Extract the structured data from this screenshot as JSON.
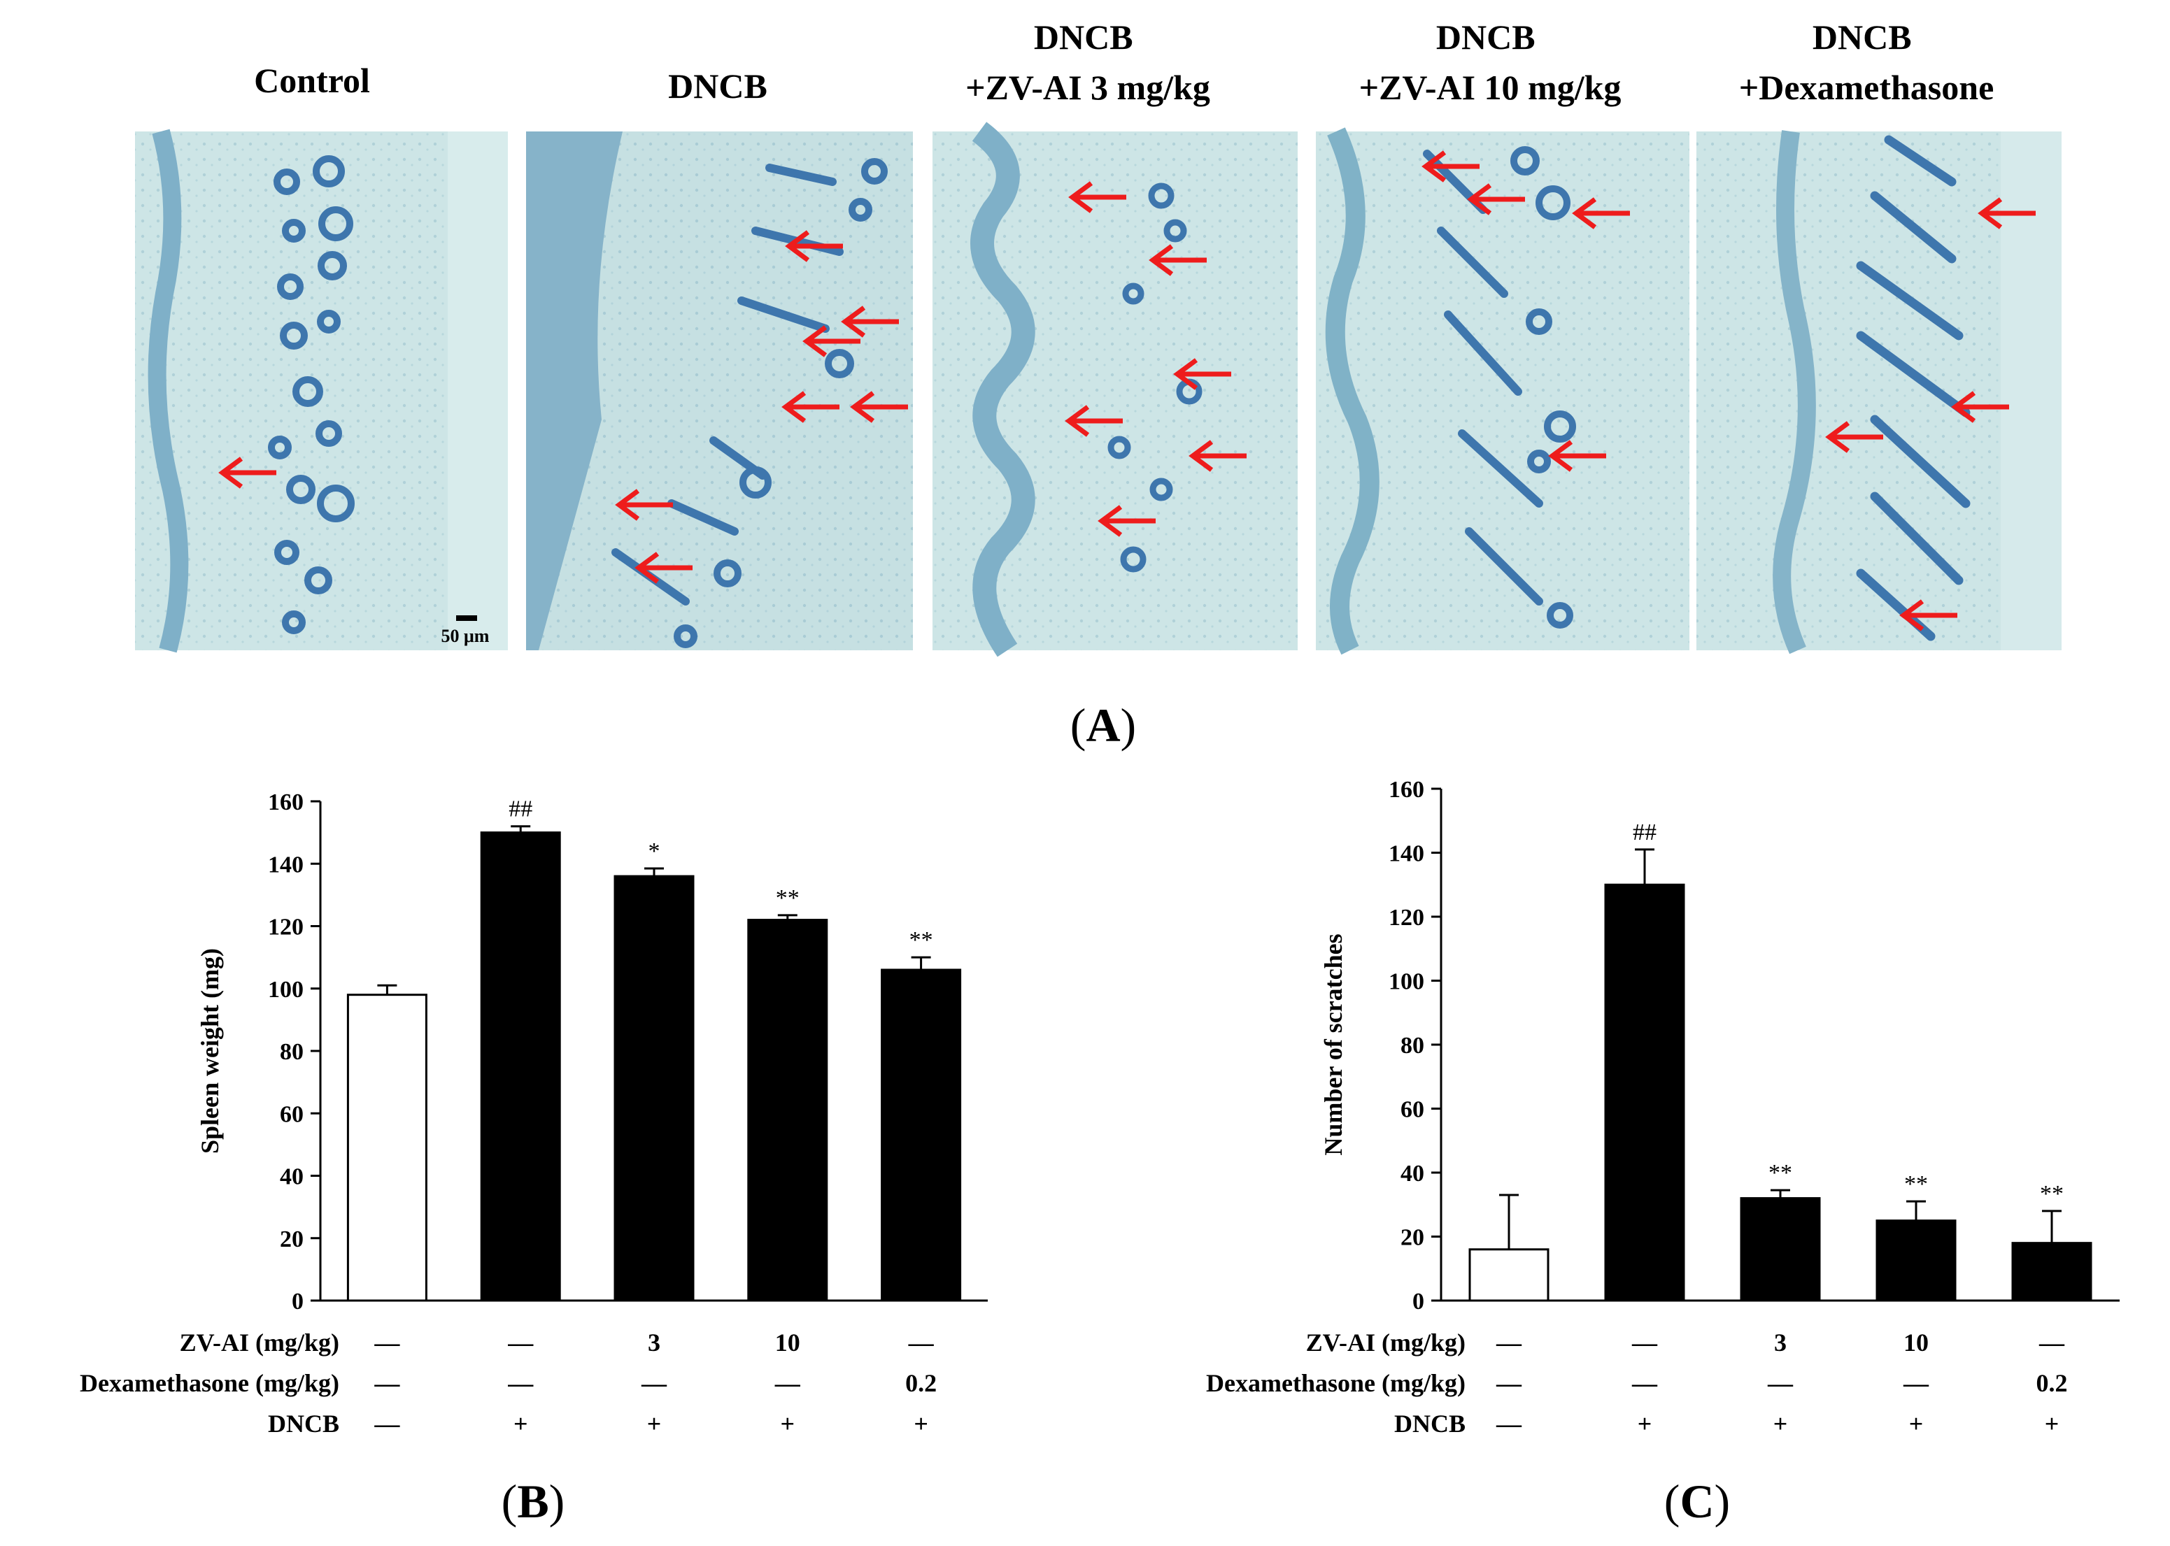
{
  "panel_a": {
    "label": "A",
    "panel_titles": [
      [
        "Control"
      ],
      [
        "DNCB"
      ],
      [
        "DNCB",
        "+ZV-AI 3 mg/kg"
      ],
      [
        "DNCB",
        "+ZV-AI 10 mg/kg"
      ],
      [
        "DNCB",
        "+Dexamethasone"
      ]
    ],
    "scale_bar": "50 μm",
    "colors": {
      "tissue_bg": "#c9e3e4",
      "stain": "#3e76ad",
      "arrow": "#ee1c1c"
    }
  },
  "chart_data": [
    {
      "panel": "B",
      "type": "bar",
      "ylabel": "Spleen weight (mg)",
      "ylim": [
        0,
        160
      ],
      "yticks": [
        "0",
        "20",
        "40",
        "60",
        "80",
        "100",
        "120",
        "140",
        "160"
      ],
      "values": [
        98,
        150,
        136,
        122,
        106
      ],
      "errors": [
        3,
        2,
        2.5,
        1.5,
        4
      ],
      "fills": [
        "#ffffff",
        "#000000",
        "#000000",
        "#000000",
        "#000000"
      ],
      "significance": [
        "",
        "##",
        "*",
        "**",
        "**"
      ],
      "treatment_rows": [
        {
          "label": "ZV-AI (mg/kg)",
          "values": [
            "—",
            "—",
            "3",
            "10",
            "—"
          ]
        },
        {
          "label": "Dexamethasone (mg/kg)",
          "values": [
            "—",
            "—",
            "—",
            "—",
            "0.2"
          ]
        },
        {
          "label": "DNCB",
          "values": [
            "—",
            "+",
            "+",
            "+",
            "+"
          ]
        }
      ]
    },
    {
      "panel": "C",
      "type": "bar",
      "ylabel": "Number of scratches",
      "ylim": [
        0,
        160
      ],
      "yticks": [
        "0",
        "20",
        "40",
        "60",
        "80",
        "100",
        "120",
        "140",
        "160"
      ],
      "values": [
        16,
        130,
        32,
        25,
        18
      ],
      "errors": [
        17,
        11,
        2.5,
        6,
        10
      ],
      "fills": [
        "#ffffff",
        "#000000",
        "#000000",
        "#000000",
        "#000000"
      ],
      "significance": [
        "",
        "##",
        "**",
        "**",
        "**"
      ],
      "treatment_rows": [
        {
          "label": "ZV-AI (mg/kg)",
          "values": [
            "—",
            "—",
            "3",
            "10",
            "—"
          ]
        },
        {
          "label": "Dexamethasone (mg/kg)",
          "values": [
            "—",
            "—",
            "—",
            "—",
            "0.2"
          ]
        },
        {
          "label": "DNCB",
          "values": [
            "—",
            "+",
            "+",
            "+",
            "+"
          ]
        }
      ]
    }
  ]
}
